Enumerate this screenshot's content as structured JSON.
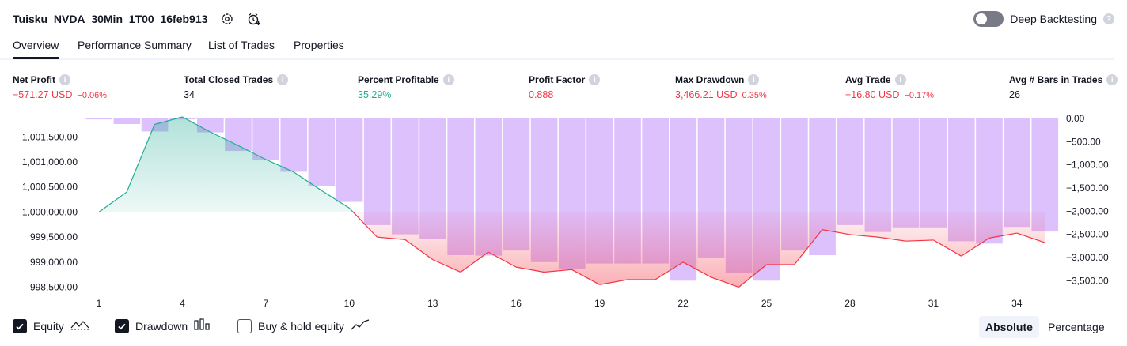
{
  "header": {
    "title": "Tuisku_NVDA_30Min_1T00_16feb913"
  },
  "deep_backtesting": {
    "label": "Deep Backtesting"
  },
  "tabs": [
    {
      "label": "Overview"
    },
    {
      "label": "Performance Summary"
    },
    {
      "label": "List of Trades"
    },
    {
      "label": "Properties"
    }
  ],
  "metrics": [
    {
      "label": "Net Profit",
      "value": "−571.27 USD",
      "pct": "−0.06%",
      "tone": "neg"
    },
    {
      "label": "Total Closed Trades",
      "value": "34",
      "pct": "",
      "tone": "neu"
    },
    {
      "label": "Percent Profitable",
      "value": "35.29%",
      "pct": "",
      "tone": "pos"
    },
    {
      "label": "Profit Factor",
      "value": "0.888",
      "pct": "",
      "tone": "neg"
    },
    {
      "label": "Max Drawdown",
      "value": "3,466.21 USD",
      "pct": "0.35%",
      "tone": "neg"
    },
    {
      "label": "Avg Trade",
      "value": "−16.80 USD",
      "pct": "−0.17%",
      "tone": "neg"
    },
    {
      "label": "Avg # Bars in Trades",
      "value": "26",
      "pct": "",
      "tone": "neu"
    }
  ],
  "chart_data": {
    "type": "line",
    "x": [
      1,
      2,
      3,
      4,
      5,
      6,
      7,
      8,
      9,
      10,
      11,
      12,
      13,
      14,
      15,
      16,
      17,
      18,
      19,
      20,
      21,
      22,
      23,
      24,
      25,
      26,
      27,
      28,
      29,
      30,
      31,
      32,
      33,
      34,
      35
    ],
    "x_ticks": [
      "1",
      "4",
      "7",
      "10",
      "13",
      "16",
      "19",
      "22",
      "25",
      "28",
      "31",
      "34"
    ],
    "y_left_ticks": [
      "1,001,500.00",
      "1,001,000.00",
      "1,000,500.00",
      "1,000,000.00",
      "999,500.00",
      "999,000.00",
      "998,500.00"
    ],
    "y_right_ticks": [
      "0.00",
      "−500.00",
      "−1,000.00",
      "−1,500.00",
      "−2,000.00",
      "−2,500.00",
      "−3,000.00",
      "−3,500.00"
    ],
    "ylim_left": [
      998350,
      1001900
    ],
    "ylim_right": [
      -3700,
      0
    ],
    "equity_baseline": 1000000,
    "series": [
      {
        "name": "Equity",
        "type": "line",
        "values": [
          1000000,
          1000400,
          1001750,
          1001900,
          1001600,
          1001330,
          1001050,
          1000800,
          1000430,
          1000080,
          999500,
          999450,
          999050,
          998800,
          999200,
          998900,
          998800,
          998850,
          998550,
          998650,
          998650,
          999000,
          998700,
          998500,
          998950,
          998950,
          999650,
          999550,
          999500,
          999420,
          999440,
          999120,
          999480,
          999580,
          999390
        ]
      },
      {
        "name": "Drawdown",
        "type": "bar",
        "values": [
          -20,
          -120,
          -280,
          -20,
          -300,
          -700,
          -900,
          -1150,
          -1450,
          -1800,
          -2300,
          -2500,
          -2600,
          -2950,
          -2960,
          -2850,
          -3100,
          -3250,
          -3130,
          -3130,
          -3130,
          -3500,
          -3000,
          -3330,
          -3500,
          -2850,
          -2950,
          -2300,
          -2450,
          -2350,
          -2350,
          -2650,
          -2700,
          -2340,
          -2440
        ]
      }
    ]
  },
  "legend": [
    {
      "label": "Equity",
      "checked": true,
      "icon": "equity-line-icon"
    },
    {
      "label": "Drawdown",
      "checked": true,
      "icon": "drawdown-bars-icon"
    },
    {
      "label": "Buy & hold equity",
      "checked": false,
      "icon": "buy-hold-line-icon"
    }
  ],
  "scale_toggle": {
    "absolute": "Absolute",
    "percentage": "Percentage"
  },
  "colors": {
    "profit_line": "#22ab94",
    "loss_line": "#f23645",
    "drawdown_bar": "#ddc1fd",
    "text_negative": "#f23645",
    "text_positive": "#22ab94"
  }
}
